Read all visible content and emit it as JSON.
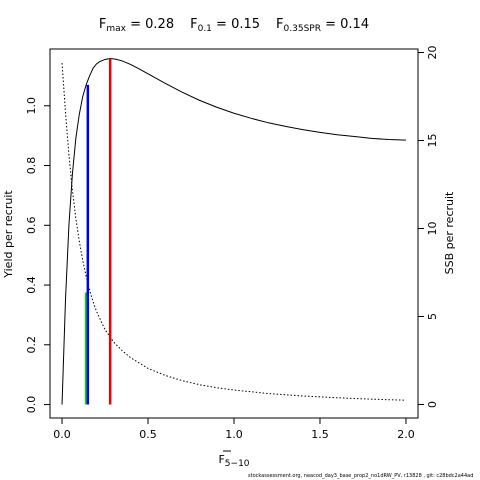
{
  "title": {
    "f_max": "0.28",
    "f_01": "0.15",
    "f_spr": "0.14"
  },
  "chart_data": {
    "type": "line",
    "xlabel": "F5−10",
    "ylabel_left": "Yield per recruit",
    "ylabel_right": "SSB per recruit",
    "xlim": [
      -0.07,
      2.07
    ],
    "ylim_left": [
      -0.045,
      1.19
    ],
    "ylim_right": [
      -0.77,
      20.2
    ],
    "x_ticks": [
      0,
      0.5,
      1,
      1.5,
      2
    ],
    "x_tick_labels": [
      "0.0",
      "0.5",
      "1.0",
      "1.5",
      "2.0"
    ],
    "y_ticks_left": [
      0,
      0.2,
      0.4,
      0.6,
      0.8,
      1.0
    ],
    "y_tick_labels_left": [
      "0.0",
      "0.2",
      "0.4",
      "0.6",
      "0.8",
      "1.0"
    ],
    "y_ticks_right": [
      0,
      5,
      10,
      15,
      20
    ],
    "y_tick_labels_right": [
      "0",
      "5",
      "10",
      "15",
      "20"
    ],
    "series": [
      {
        "axis": "left",
        "style": "solid",
        "color": "#000000",
        "x": [
          0,
          0.02,
          0.04,
          0.06,
          0.08,
          0.1,
          0.12,
          0.14,
          0.16,
          0.18,
          0.2,
          0.22,
          0.25,
          0.28,
          0.31,
          0.35,
          0.4,
          0.45,
          0.5,
          0.6,
          0.7,
          0.8,
          0.9,
          1.0,
          1.1,
          1.2,
          1.3,
          1.4,
          1.5,
          1.6,
          1.7,
          1.8,
          1.9,
          2.0
        ],
        "values": [
          0.0,
          0.35,
          0.6,
          0.77,
          0.89,
          0.97,
          1.03,
          1.07,
          1.1,
          1.125,
          1.14,
          1.148,
          1.155,
          1.158,
          1.156,
          1.15,
          1.138,
          1.123,
          1.107,
          1.075,
          1.045,
          1.018,
          0.995,
          0.975,
          0.958,
          0.943,
          0.931,
          0.92,
          0.911,
          0.903,
          0.897,
          0.891,
          0.887,
          0.885
        ]
      },
      {
        "axis": "right",
        "style": "dotted",
        "color": "#000000",
        "x": [
          0,
          0.02,
          0.04,
          0.06,
          0.08,
          0.1,
          0.12,
          0.14,
          0.16,
          0.18,
          0.2,
          0.25,
          0.3,
          0.35,
          0.4,
          0.5,
          0.6,
          0.7,
          0.8,
          0.9,
          1.0,
          1.2,
          1.4,
          1.6,
          1.8,
          2.0
        ],
        "values": [
          19.4,
          16.6,
          14.2,
          12.2,
          10.6,
          9.3,
          8.2,
          7.3,
          6.5,
          5.85,
          5.3,
          4.25,
          3.55,
          3.05,
          2.65,
          2.05,
          1.65,
          1.35,
          1.12,
          0.95,
          0.82,
          0.62,
          0.48,
          0.38,
          0.3,
          0.24
        ]
      }
    ],
    "reference_lines": [
      {
        "label": "F0.35SPR",
        "x": 0.14,
        "y_top": 0.375,
        "color": "#00dd00"
      },
      {
        "label": "F0.1",
        "x": 0.15,
        "y_top": 1.07,
        "color": "#0000ee"
      },
      {
        "label": "Fmax",
        "x": 0.28,
        "y_top": 1.158,
        "color": "#ee0000"
      }
    ]
  },
  "footer": "stockassessment.org, neacod_day3_base_prop2_no1dRW_PV, r13828 , git: c28bdc2a44ad"
}
